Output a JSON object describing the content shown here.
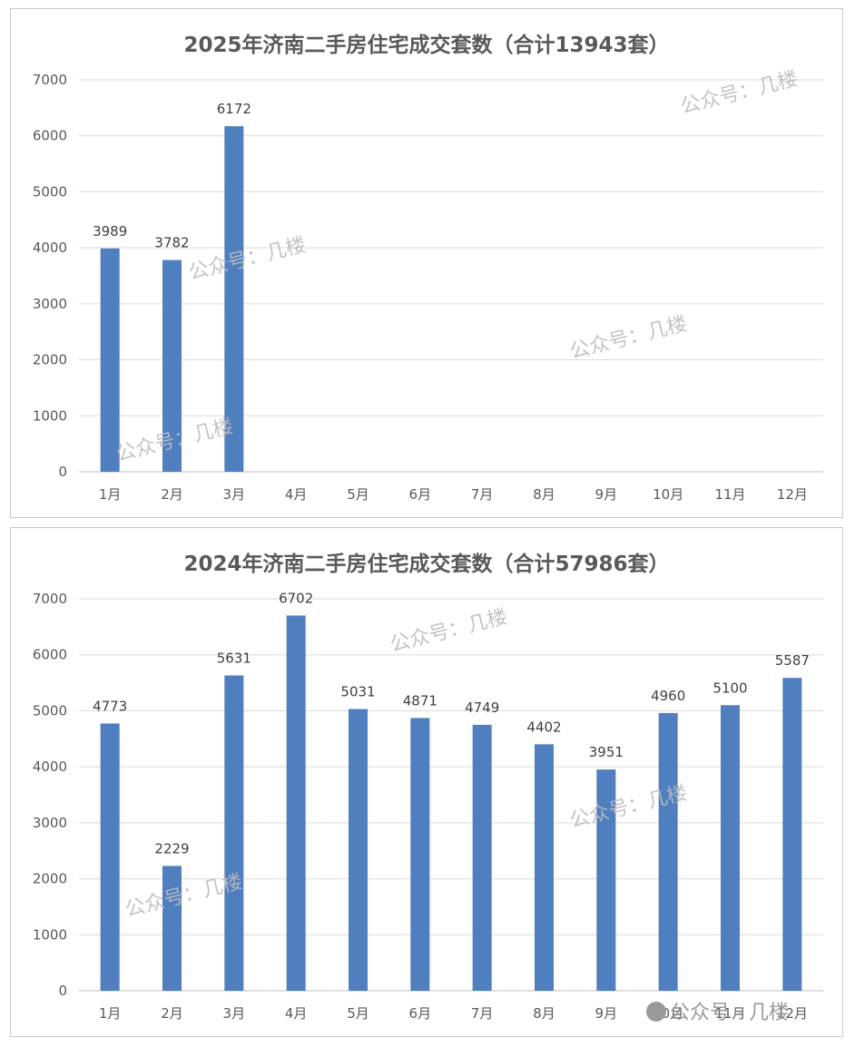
{
  "chart_data": [
    {
      "type": "bar",
      "title": "2025年济南二手房住宅成交套数（合计13943套）",
      "categories": [
        "1月",
        "2月",
        "3月",
        "4月",
        "5月",
        "6月",
        "7月",
        "8月",
        "9月",
        "10月",
        "11月",
        "12月"
      ],
      "values": [
        3989,
        3782,
        6172,
        null,
        null,
        null,
        null,
        null,
        null,
        null,
        null,
        null
      ],
      "ylim": [
        0,
        7000
      ],
      "yticks": [
        "0",
        "1000",
        "2000",
        "3000",
        "4000",
        "5000",
        "6000",
        "7000"
      ],
      "grid": true,
      "bar_color": "#4f7fbf"
    },
    {
      "type": "bar",
      "title": "2024年济南二手房住宅成交套数（合计57986套）",
      "categories": [
        "1月",
        "2月",
        "3月",
        "4月",
        "5月",
        "6月",
        "7月",
        "8月",
        "9月",
        "10月",
        "11月",
        "12月"
      ],
      "values": [
        4773,
        2229,
        5631,
        6702,
        5031,
        4871,
        4749,
        4402,
        3951,
        4960,
        5100,
        5587
      ],
      "ylim": [
        0,
        7000
      ],
      "yticks": [
        "0",
        "1000",
        "2000",
        "3000",
        "4000",
        "5000",
        "6000",
        "7000"
      ],
      "grid": true,
      "bar_color": "#4f7fbf"
    }
  ],
  "watermarks": {
    "text": "公众号：几楼",
    "footer": "公众号 · 几楼"
  }
}
